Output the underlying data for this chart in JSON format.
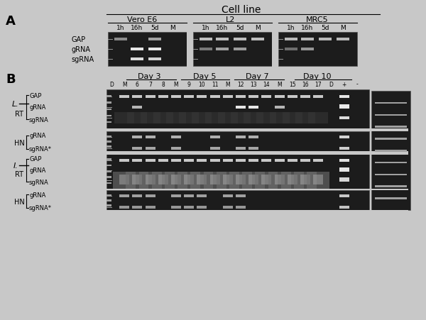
{
  "title": "Cell line",
  "fig_bg": "#c8c8c8",
  "panel_A": {
    "label": "A",
    "cell_lines": [
      "Vero E6",
      "L2",
      "MRC5"
    ],
    "time_points": [
      "1h",
      "16h",
      "5d",
      "M"
    ],
    "row_labels": [
      "GAP",
      "gRNA",
      "sgRNA"
    ]
  },
  "panel_B": {
    "label": "B",
    "days": [
      "Day 3",
      "Day 5",
      "Day 7",
      "Day 10"
    ],
    "lane_labels": [
      "D",
      "M",
      "6",
      "7",
      "8",
      "M",
      "9",
      "10",
      "11",
      "M",
      "12",
      "13",
      "14",
      "M",
      "15",
      "16",
      "17",
      "D",
      "+",
      "-"
    ],
    "lung_label": "L.",
    "intestine_label": "I.",
    "RT_label": "RT",
    "HN_label": "HN",
    "RT_rows": [
      "GAP",
      "gRNA",
      "sgRNA"
    ],
    "HN_rows": [
      "gRNA",
      "sgRNA*"
    ]
  }
}
